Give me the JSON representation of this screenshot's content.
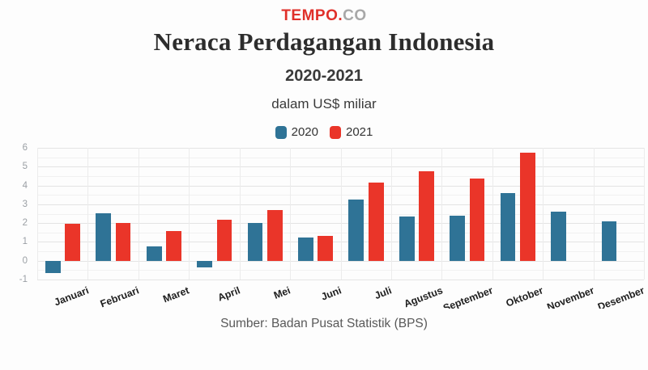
{
  "header": {
    "logo": {
      "primary": "TEMPO.",
      "secondary": "CO"
    },
    "title": "Neraca Perdagangan Indonesia",
    "subtitle": "2020-2021",
    "unit_label": "dalam US$ miliar"
  },
  "colors": {
    "series_2020": "#2f7396",
    "series_2021": "#ea3529",
    "logo_red": "#e0302a",
    "logo_gray": "#a8a8a8"
  },
  "chart_data": {
    "type": "bar",
    "title": "Neraca Perdagangan Indonesia",
    "subtitle": "2020-2021",
    "ylabel": "dalam US$ miliar",
    "categories": [
      "Januari",
      "Februari",
      "Maret",
      "April",
      "Mei",
      "Juni",
      "Juli",
      "Agustus",
      "September",
      "Oktober",
      "November",
      "Desember"
    ],
    "series": [
      {
        "name": "2020",
        "color": "#2f7396",
        "values": [
          -0.64,
          2.51,
          0.74,
          -0.35,
          2.02,
          1.25,
          3.26,
          2.35,
          2.39,
          3.58,
          2.59,
          2.1
        ]
      },
      {
        "name": "2021",
        "color": "#ea3529",
        "values": [
          1.96,
          2.01,
          1.57,
          2.19,
          2.68,
          1.32,
          4.14,
          4.74,
          4.37,
          5.73,
          null,
          null
        ]
      }
    ],
    "ylim": [
      -1,
      6
    ],
    "yticks": [
      -1,
      0,
      1,
      2,
      3,
      4,
      5,
      6
    ],
    "grid": true,
    "minor_grid_step": 0.5,
    "legend_position": "top"
  },
  "footer": {
    "source": "Sumber: Badan Pusat Statistik (BPS)"
  }
}
